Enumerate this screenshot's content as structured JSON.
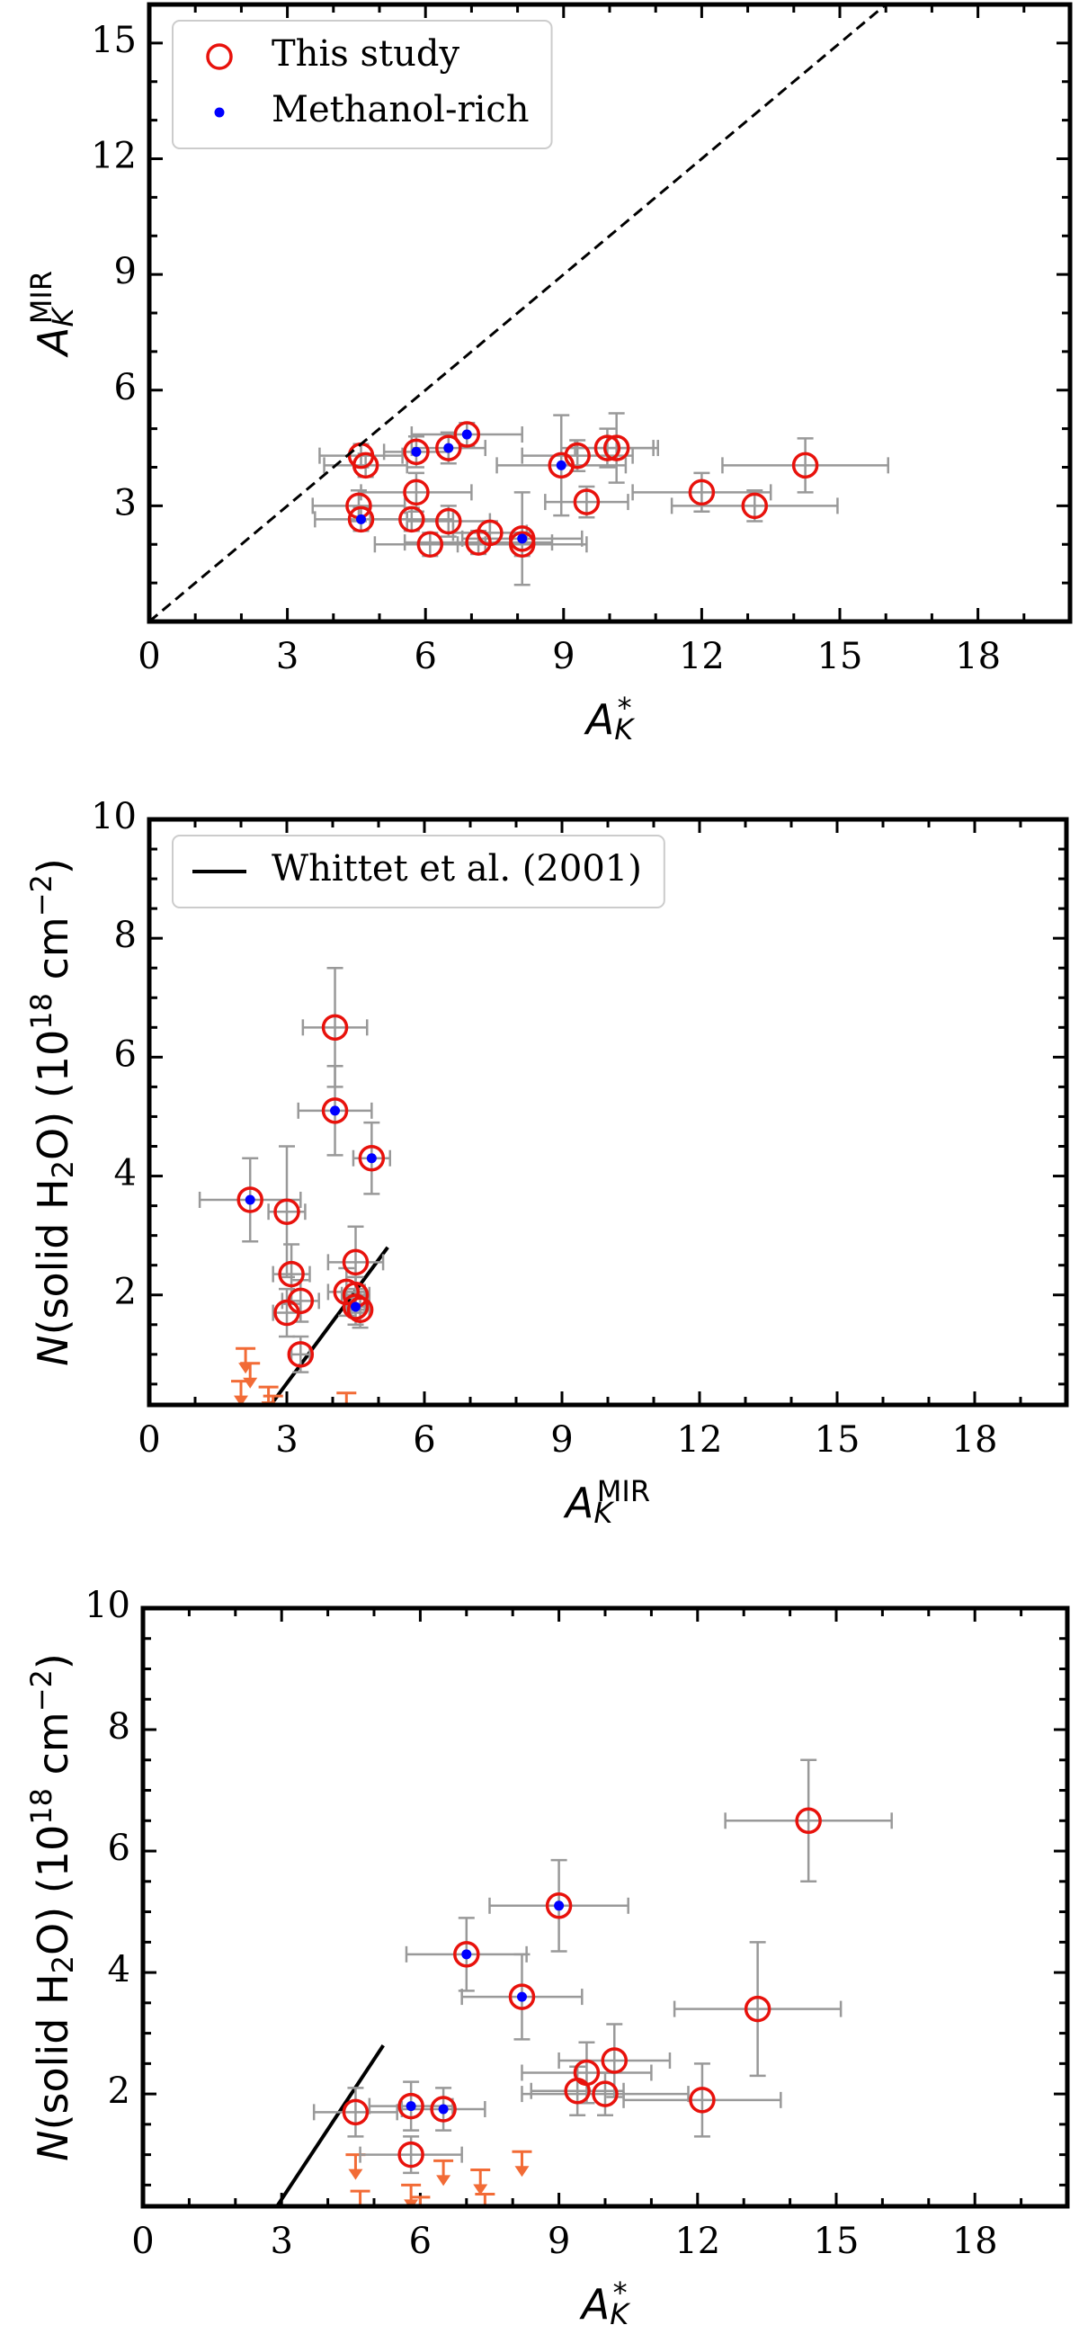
{
  "chart_data": [
    {
      "type": "scatter",
      "xlim": [
        0,
        20
      ],
      "ylim": [
        0,
        16
      ],
      "xticks": [
        0,
        3,
        6,
        9,
        12,
        15,
        18
      ],
      "yticks": [
        3,
        6,
        9,
        12,
        15
      ],
      "minor_ticks": true,
      "legend": "upper left",
      "xlabel": [
        {
          "text": "A",
          "style": "italic"
        },
        {
          "text": "K",
          "shift": "sub",
          "style": "italic"
        },
        {
          "text": "*",
          "shift": "sup"
        }
      ],
      "ylabel": [
        {
          "text": "A",
          "style": "italic"
        },
        {
          "text": "K",
          "shift": "sub",
          "style": "italic"
        },
        {
          "text": "MIR",
          "shift": "sup"
        }
      ],
      "series": [
        {
          "name": "This study",
          "kind": "circle",
          "color": "#e8120c",
          "err_color": "#999999",
          "x": [
            4.6,
            4.7,
            4.55,
            4.6,
            5.8,
            5.8,
            5.7,
            6.1,
            6.5,
            6.5,
            6.9,
            7.15,
            7.4,
            8.1,
            8.1,
            8.95,
            9.3,
            9.5,
            9.95,
            10.15,
            12.0,
            13.15,
            14.25
          ],
          "values": [
            4.3,
            4.05,
            3.0,
            2.65,
            4.4,
            3.35,
            2.65,
            2.0,
            4.5,
            2.6,
            4.85,
            2.05,
            2.3,
            2.15,
            2.0,
            4.05,
            4.3,
            3.1,
            4.5,
            4.5,
            3.35,
            3.0,
            4.05
          ],
          "xerr": [
            0.9,
            0.9,
            1.0,
            1.0,
            0.7,
            1.2,
            0.9,
            1.2,
            0.8,
            0.9,
            1.2,
            1.6,
            0.8,
            1.3,
            1.4,
            1.4,
            1.2,
            0.9,
            1.0,
            0.9,
            1.5,
            1.8,
            1.8
          ],
          "yerr": [
            0.3,
            0.3,
            0.4,
            0.3,
            0.4,
            0.5,
            0.3,
            0.3,
            0.4,
            0.4,
            0.3,
            0.3,
            0.3,
            1.2,
            0.3,
            1.3,
            0.4,
            0.4,
            0.5,
            0.9,
            0.5,
            0.4,
            0.7
          ]
        },
        {
          "name": "Methanol-rich",
          "kind": "dot",
          "color": "#0000ff",
          "x": [
            4.6,
            5.8,
            6.5,
            6.9,
            8.1,
            8.95
          ],
          "values": [
            2.65,
            4.4,
            4.5,
            4.85,
            2.15,
            4.05
          ]
        },
        {
          "kind": "line",
          "dash": true,
          "color": "#000000",
          "x": [
            0,
            16
          ],
          "values": [
            0,
            16
          ]
        }
      ]
    },
    {
      "type": "scatter",
      "xlim": [
        0,
        20
      ],
      "ylim": [
        0.15,
        10
      ],
      "xticks": [
        0,
        3,
        6,
        9,
        12,
        15,
        18
      ],
      "yticks": [
        2,
        4,
        6,
        8,
        10
      ],
      "minor_ticks": true,
      "legend": "upper left",
      "xlabel": [
        {
          "text": "A",
          "style": "italic"
        },
        {
          "text": "K",
          "shift": "sub",
          "style": "italic"
        },
        {
          "text": "MIR",
          "shift": "sup"
        }
      ],
      "ylabel": [
        {
          "text": "N",
          "style": "italic"
        },
        {
          "text": "(solid H"
        },
        {
          "text": "2",
          "shift": "sub"
        },
        {
          "text": "O)  (10"
        },
        {
          "text": "18",
          "shift": "sup"
        },
        {
          "text": " cm"
        },
        {
          "text": "−2",
          "shift": "sup"
        },
        {
          "text": ")"
        }
      ],
      "series": [
        {
          "name": "Whittet et al. (2001)",
          "kind": "line",
          "dash": false,
          "color": "#000000",
          "x": [
            2.65,
            5.2
          ],
          "values": [
            0.15,
            2.8
          ]
        },
        {
          "kind": "limit",
          "color": "#f26b36",
          "x": [
            2.1,
            2.2,
            2.0,
            2.6,
            2.7,
            4.3
          ],
          "values": [
            1.1,
            0.85,
            0.55,
            0.45,
            0.3,
            0.35
          ]
        },
        {
          "kind": "circle",
          "color": "#e8120c",
          "err_color": "#999999",
          "x": [
            4.05,
            4.05,
            4.85,
            2.2,
            3.0,
            3.1,
            3.0,
            3.3,
            3.3,
            4.5,
            4.3,
            4.5,
            4.5,
            4.6
          ],
          "values": [
            6.5,
            5.1,
            4.3,
            3.6,
            3.4,
            2.35,
            1.7,
            1.9,
            1.0,
            2.55,
            2.05,
            2.0,
            1.8,
            1.75
          ],
          "xerr": [
            0.7,
            0.8,
            0.4,
            1.1,
            0.4,
            0.4,
            0.3,
            0.4,
            0.2,
            0.6,
            0.4,
            0.3,
            0.2,
            0.2
          ],
          "yerr": [
            1.0,
            0.75,
            0.6,
            0.7,
            1.1,
            0.5,
            0.4,
            0.35,
            0.3,
            0.6,
            0.4,
            0.3,
            0.3,
            0.3
          ]
        },
        {
          "kind": "dot",
          "color": "#0000ff",
          "x": [
            4.05,
            4.85,
            2.2,
            4.5
          ],
          "values": [
            5.1,
            4.3,
            3.6,
            1.8
          ]
        }
      ]
    },
    {
      "type": "scatter",
      "xlim": [
        0,
        20
      ],
      "ylim": [
        0.15,
        10
      ],
      "xticks": [
        0,
        3,
        6,
        9,
        12,
        15,
        18
      ],
      "yticks": [
        2,
        4,
        6,
        8,
        10
      ],
      "minor_ticks": true,
      "xlabel": [
        {
          "text": "A",
          "style": "italic"
        },
        {
          "text": "K",
          "shift": "sub",
          "style": "italic"
        },
        {
          "text": "*",
          "shift": "sup"
        }
      ],
      "ylabel": [
        {
          "text": "N",
          "style": "italic"
        },
        {
          "text": "(solid H"
        },
        {
          "text": "2",
          "shift": "sub"
        },
        {
          "text": "O)  (10"
        },
        {
          "text": "18",
          "shift": "sup"
        },
        {
          "text": " cm"
        },
        {
          "text": "−2",
          "shift": "sup"
        },
        {
          "text": ")"
        }
      ],
      "series": [
        {
          "kind": "line",
          "dash": false,
          "color": "#000000",
          "x": [
            2.9,
            5.2
          ],
          "values": [
            0.15,
            2.8
          ]
        },
        {
          "kind": "limit",
          "color": "#f26b36",
          "x": [
            4.6,
            4.7,
            5.8,
            6.0,
            6.5,
            7.3,
            7.4,
            8.2
          ],
          "values": [
            1.0,
            0.4,
            0.5,
            0.3,
            0.9,
            0.75,
            0.35,
            1.05
          ]
        },
        {
          "kind": "circle",
          "color": "#e8120c",
          "err_color": "#999999",
          "x": [
            14.4,
            9.0,
            7.0,
            8.2,
            13.3,
            10.2,
            9.6,
            9.4,
            10.0,
            12.1,
            4.6,
            5.8,
            6.5,
            5.8
          ],
          "values": [
            6.5,
            5.1,
            4.3,
            3.6,
            3.4,
            2.55,
            2.35,
            2.05,
            2.0,
            1.9,
            1.7,
            1.8,
            1.75,
            1.0
          ],
          "xerr": [
            1.8,
            1.5,
            1.3,
            1.3,
            1.8,
            1.2,
            1.4,
            1.0,
            1.8,
            1.7,
            0.9,
            0.9,
            0.9,
            1.1
          ],
          "yerr": [
            1.0,
            0.75,
            0.6,
            0.7,
            1.1,
            0.6,
            0.5,
            0.4,
            0.35,
            0.6,
            0.4,
            0.4,
            0.35,
            0.3
          ]
        },
        {
          "kind": "dot",
          "color": "#0000ff",
          "x": [
            9.0,
            7.0,
            8.2,
            5.8,
            6.5
          ],
          "values": [
            5.1,
            4.3,
            3.6,
            1.8,
            1.75
          ]
        }
      ]
    }
  ]
}
